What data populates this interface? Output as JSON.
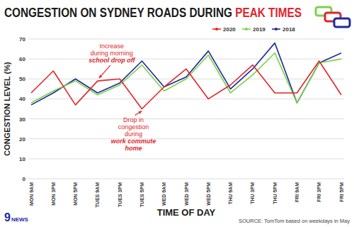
{
  "chart_data": {
    "type": "line",
    "title": "CONGESTION ON SYDNEY ROADS DURING PEAK TIMES",
    "x_label": "TIME OF DAY",
    "y_label": "CONGESTION LEVEL (%)",
    "source": "SOURCE: TomTom based on weekdays in May",
    "logo": "9 NEWS",
    "categories": [
      "MON 9AM",
      "MON 3PM",
      "MON 5PM",
      "TUES 9AM",
      "TUES 3PM",
      "TUES 5PM",
      "WED 9AM",
      "WED 3PM",
      "WED 5PM",
      "THU 9AM",
      "THU 3PM",
      "THU 5PM",
      "FRI 9AM",
      "FRI 3PM",
      "FRI 5PM"
    ],
    "series": [
      {
        "name": "2020",
        "color": "#e0262b",
        "values": [
          43,
          54,
          37,
          49,
          50,
          35,
          46,
          55,
          40,
          47,
          57,
          43,
          43,
          59,
          42
        ]
      },
      {
        "name": "2019",
        "color": "#7ed14a",
        "values": [
          38,
          44,
          49,
          42,
          47,
          57,
          44,
          50,
          62,
          43,
          52,
          63,
          38,
          58,
          60
        ]
      },
      {
        "name": "2018",
        "color": "#1c2a9c",
        "values": [
          37,
          43,
          50,
          43,
          48,
          59,
          46,
          51,
          64,
          45,
          55,
          68,
          38,
          58,
          63
        ]
      }
    ],
    "annotations": [
      {
        "text": [
          "Increase",
          "during morning"
        ],
        "emphasis": [
          "school drop off"
        ],
        "target": "TUES 9AM",
        "series": "2020"
      },
      {
        "text": [
          "Drop in",
          "congestion",
          "during"
        ],
        "emphasis": [
          "work commute",
          "home"
        ],
        "target": "TUES 5PM",
        "series": "2020"
      }
    ],
    "ylim": [
      0,
      70
    ],
    "yticks": [
      0,
      10,
      20,
      30,
      40,
      50,
      60,
      70
    ],
    "grid": true,
    "legend": "top-right"
  }
}
